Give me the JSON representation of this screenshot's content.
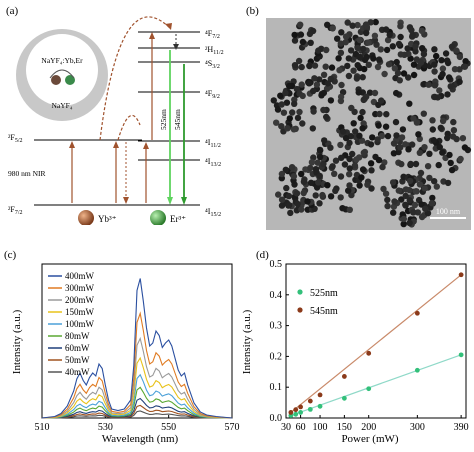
{
  "panel_a": {
    "label": "(a)",
    "core_label": "NaYF₄:Yb,Er",
    "shell_label": "NaYF₄",
    "levels_yb": [
      "²F₅₂",
      "²F₇₂"
    ],
    "yb_upper": "2F5/2",
    "yb_lower": "2F7/2",
    "excitation": "980 nm NIR",
    "ion_yb": "Yb³⁺",
    "ion_er": "Er³⁺",
    "er_levels": [
      "4F7/2",
      "2H11/2",
      "4S3/2",
      "4F9/2",
      "4I11/2",
      "4I13/2",
      "4I15/2"
    ],
    "em_green1": "525nm",
    "em_green2": "545nm",
    "colors": {
      "yb": "#8b4a2b",
      "er_green": "#3a9a3a",
      "arrow_brown": "#a0522d",
      "green_emit": "#5fd35f"
    }
  },
  "panel_b": {
    "label": "(b)",
    "scale_bar": "100 nm"
  },
  "panel_c": {
    "label": "(c)",
    "chart_data": {
      "type": "line",
      "xlabel": "Wavelength (nm)",
      "ylabel": "Intensity (a.u.)",
      "xlim": [
        510,
        570
      ],
      "xticks": [
        510,
        530,
        550,
        570
      ],
      "legend_position": "top-left",
      "series": [
        {
          "name": "400mW",
          "color": "#2a4fa0",
          "scale": 1.0
        },
        {
          "name": "300mW",
          "color": "#e07b22",
          "scale": 0.75
        },
        {
          "name": "200mW",
          "color": "#9a9a9a",
          "scale": 0.57
        },
        {
          "name": "150mW",
          "color": "#e8c21a",
          "scale": 0.43
        },
        {
          "name": "100mW",
          "color": "#4aa0d8",
          "scale": 0.31
        },
        {
          "name": "80mW",
          "color": "#5aa832",
          "scale": 0.22
        },
        {
          "name": "60mW",
          "color": "#1f3f7a",
          "scale": 0.14
        },
        {
          "name": "50mW",
          "color": "#a0521f",
          "scale": 0.09
        },
        {
          "name": "40mW",
          "color": "#555555",
          "scale": 0.05
        }
      ],
      "base_spectrum": {
        "x": [
          510,
          514,
          516,
          518,
          520,
          521,
          522,
          523,
          524,
          525,
          526,
          527,
          528,
          529,
          530,
          531,
          532,
          534,
          536,
          538,
          539,
          540,
          541,
          542,
          543,
          544,
          545,
          546,
          547,
          548,
          549,
          550,
          551,
          552,
          553,
          554,
          555,
          556,
          558,
          560,
          562,
          565,
          570
        ],
        "y": [
          0.0,
          0.01,
          0.03,
          0.08,
          0.18,
          0.26,
          0.3,
          0.25,
          0.22,
          0.27,
          0.3,
          0.28,
          0.36,
          0.33,
          0.22,
          0.12,
          0.06,
          0.05,
          0.06,
          0.12,
          0.35,
          0.85,
          0.93,
          0.78,
          0.6,
          0.48,
          0.5,
          0.58,
          0.55,
          0.47,
          0.5,
          0.52,
          0.48,
          0.4,
          0.32,
          0.28,
          0.3,
          0.22,
          0.1,
          0.04,
          0.02,
          0.01,
          0.0
        ]
      }
    }
  },
  "panel_d": {
    "label": "(d)",
    "chart_data": {
      "type": "scatter",
      "xlabel": "Power (mW)",
      "ylabel": "Intensity (a.u.)",
      "xlim": [
        30,
        400
      ],
      "ylim": [
        0,
        0.5
      ],
      "xticks": [
        30,
        60,
        100,
        150,
        200,
        300,
        390
      ],
      "yticks": [
        0.0,
        0.1,
        0.2,
        0.3,
        0.4,
        0.5
      ],
      "series": [
        {
          "name": "525nm",
          "color": "#33c07a",
          "line_color": "#8fd9c8",
          "x": [
            40,
            50,
            60,
            80,
            100,
            150,
            200,
            300,
            390
          ],
          "y": [
            0.008,
            0.012,
            0.018,
            0.028,
            0.038,
            0.064,
            0.095,
            0.155,
            0.205
          ]
        },
        {
          "name": "545nm",
          "color": "#8b3a1a",
          "line_color": "#c98a6a",
          "x": [
            40,
            50,
            60,
            80,
            100,
            150,
            200,
            300,
            390
          ],
          "y": [
            0.018,
            0.027,
            0.036,
            0.055,
            0.075,
            0.135,
            0.21,
            0.34,
            0.465
          ]
        }
      ]
    }
  }
}
